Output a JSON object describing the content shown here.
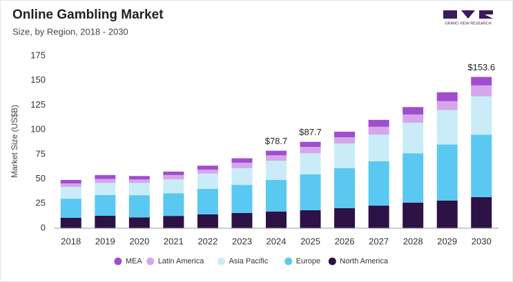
{
  "chart_data": {
    "type": "stacked-bar",
    "title": "Online Gambling Market",
    "subtitle": "Size, by Region, 2018 - 2030",
    "y_label": "Market Size (US$B)",
    "logo_text": "GRAND VIEW RESEARCH",
    "categories": [
      "2018",
      "2019",
      "2020",
      "2021",
      "2022",
      "2023",
      "2024",
      "2025",
      "2026",
      "2027",
      "2028",
      "2029",
      "2030"
    ],
    "series": [
      {
        "name": "North America",
        "color": "#2d1245",
        "values": [
          10.5,
          12.6,
          11,
          12.5,
          14,
          15.4,
          17,
          18.2,
          20.3,
          23,
          26,
          28,
          31.5
        ]
      },
      {
        "name": "Europe",
        "color": "#5ac8f0",
        "values": [
          19.5,
          21,
          22.5,
          23,
          26,
          28.6,
          32,
          36.4,
          40.7,
          45,
          50,
          57,
          63.5
        ]
      },
      {
        "name": "Asia Pacific",
        "color": "#c9ecf8",
        "values": [
          12,
          12.4,
          12.5,
          14,
          15.5,
          17,
          19.5,
          21.5,
          25,
          27,
          31,
          35,
          39
        ]
      },
      {
        "name": "Latin America",
        "color": "#d6a6ea",
        "values": [
          3.5,
          4,
          3.5,
          4.5,
          4,
          5.5,
          5.5,
          6.5,
          6.4,
          8,
          8.5,
          9,
          11
        ]
      },
      {
        "name": "MEA",
        "color": "#a04dd0",
        "values": [
          3.5,
          4,
          3.5,
          3.5,
          4,
          4.5,
          4.7,
          5.1,
          5.6,
          7,
          7.5,
          9,
          8.6
        ]
      }
    ],
    "totals": [
      null,
      null,
      null,
      null,
      null,
      null,
      78.7,
      87.7,
      null,
      null,
      null,
      null,
      153.6
    ],
    "total_labels": [
      null,
      null,
      null,
      null,
      null,
      null,
      "$78.7",
      "$87.7",
      null,
      null,
      null,
      null,
      "$153.6"
    ],
    "ylim": [
      0,
      175
    ],
    "yticks": [
      0,
      25,
      50,
      75,
      100,
      125,
      150,
      175
    ],
    "grid": false
  }
}
